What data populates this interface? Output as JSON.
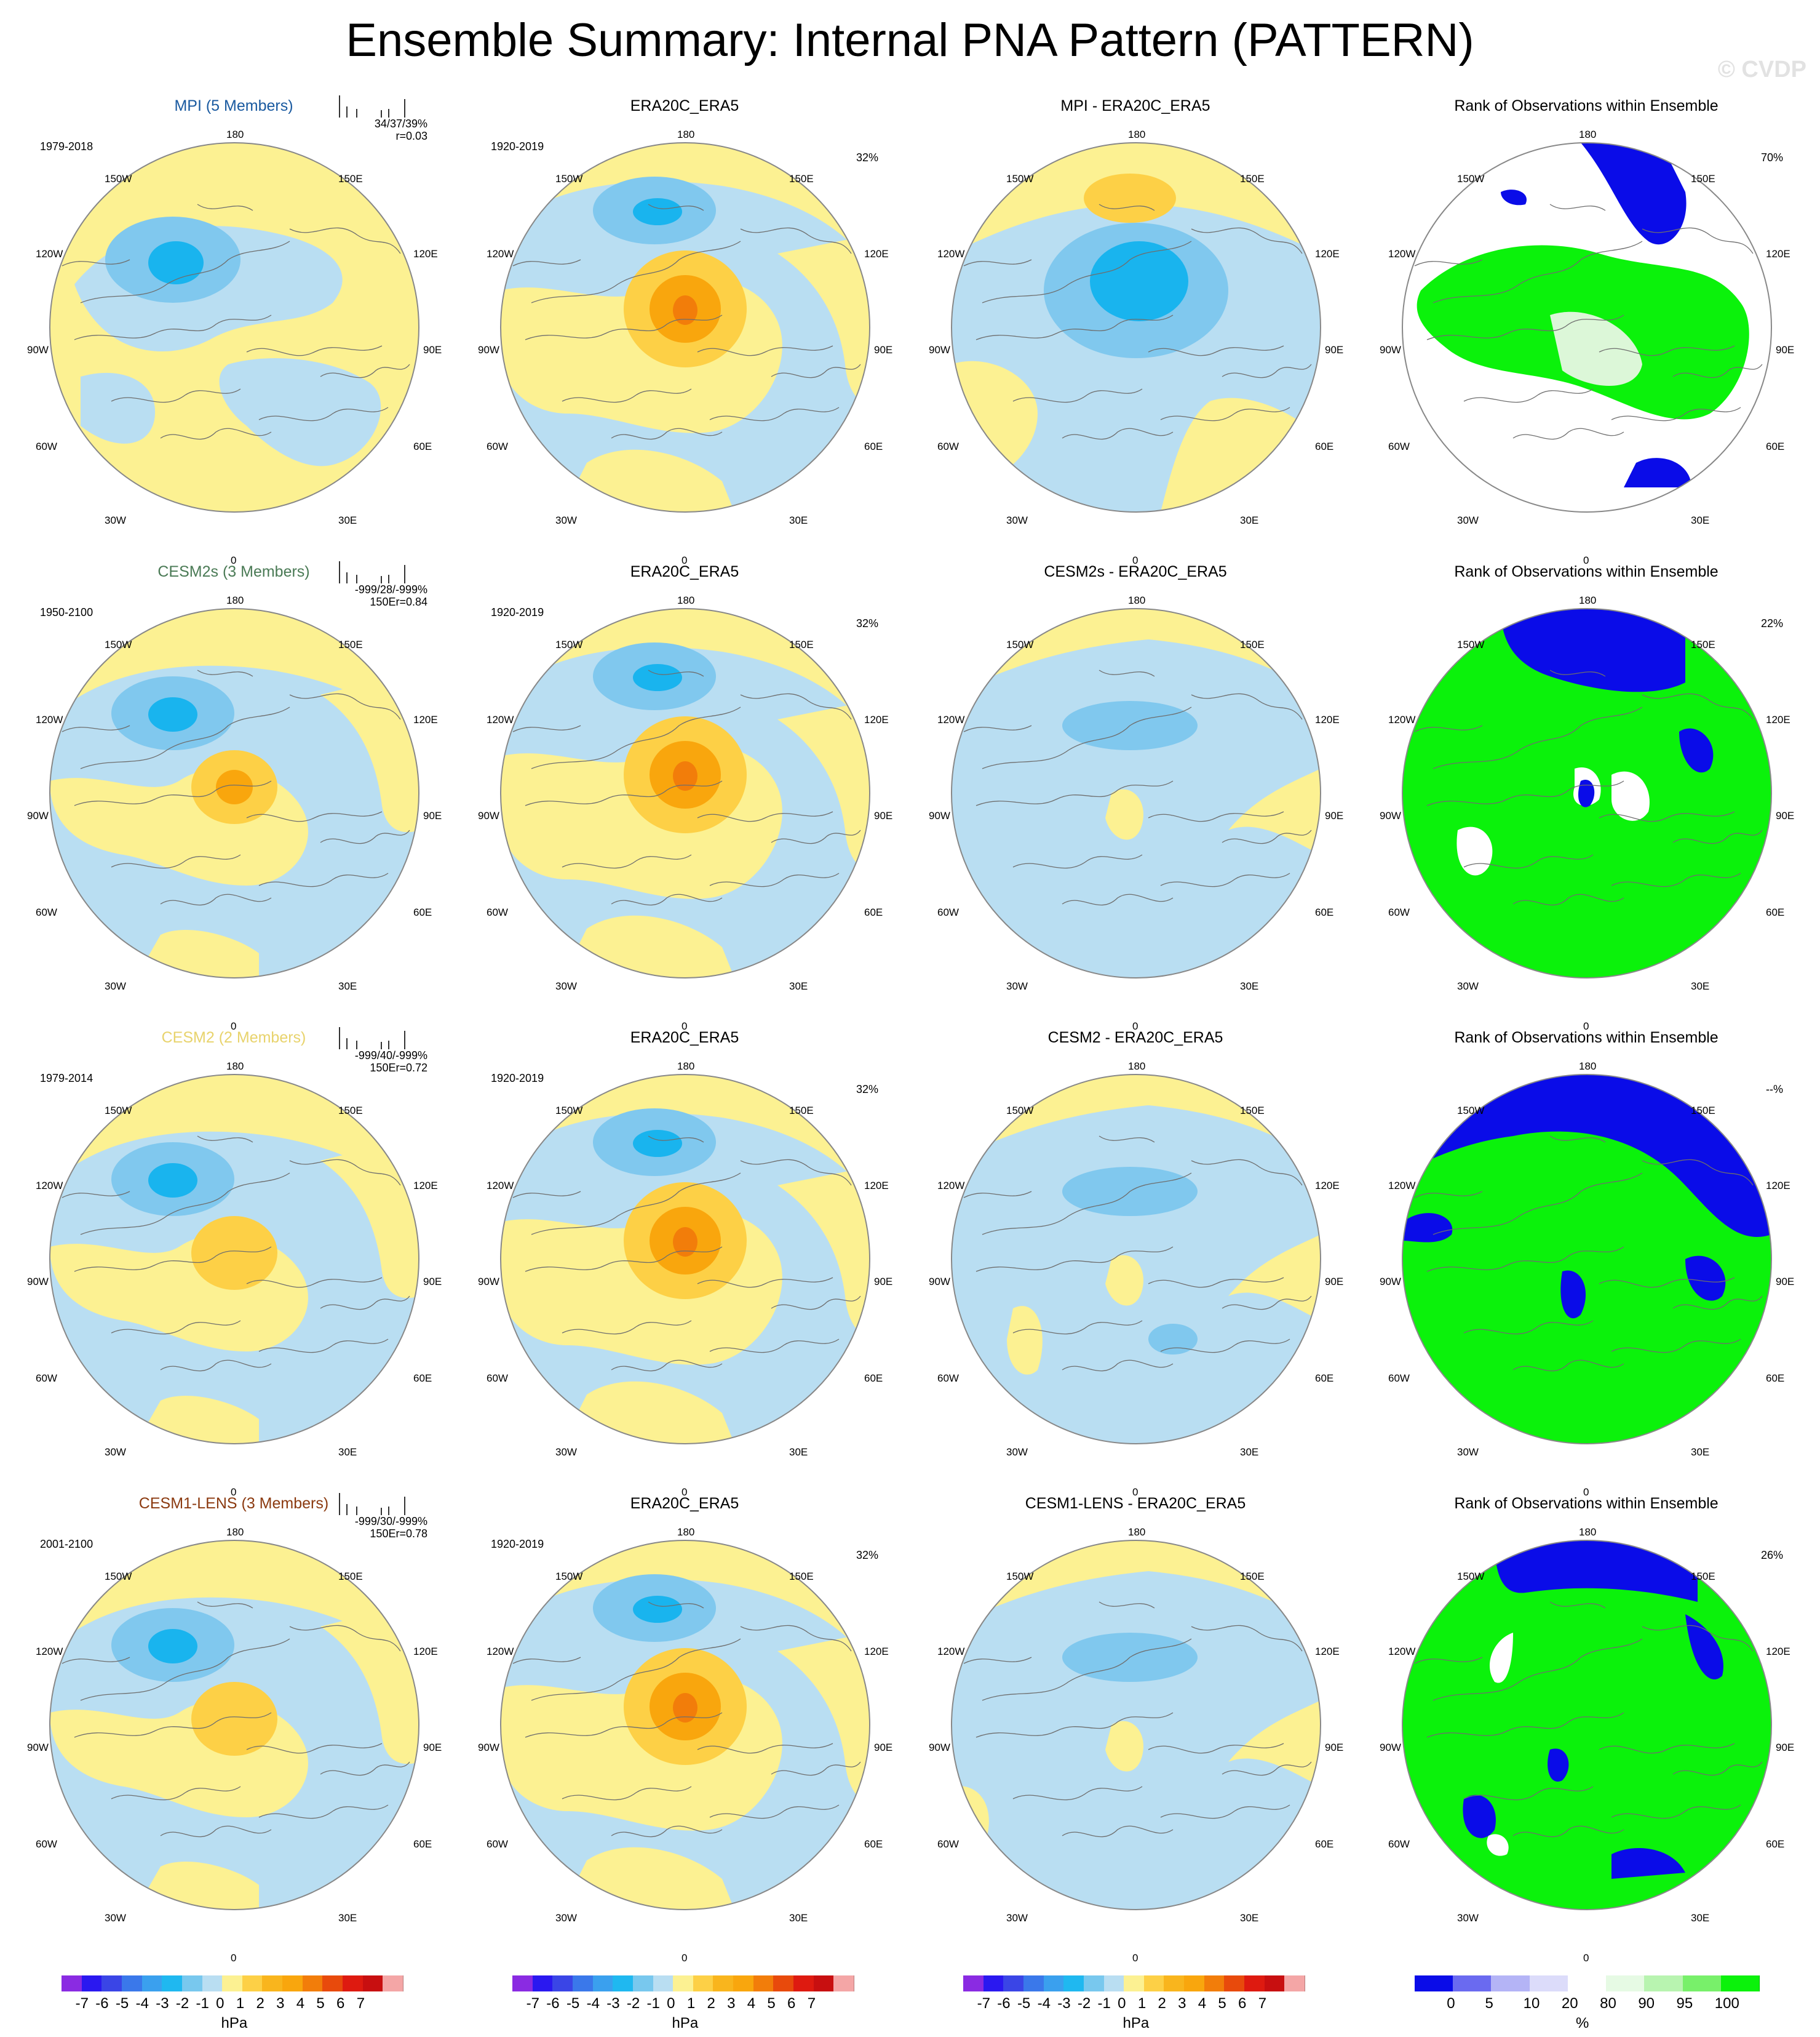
{
  "title": "Ensemble Summary: Internal PNA Pattern (PATTERN)",
  "copyright": "© CVDP",
  "colors": {
    "title_blue": "#1a5aa0",
    "title_green": "#4a7a55",
    "title_yellow": "#e8d36c",
    "title_brown": "#8b3a10",
    "neg1": "#b9def2",
    "neg2": "#80c8ee",
    "neg3": "#19b4ee",
    "pos1": "#fcf192",
    "pos2": "#fdd046",
    "pos3": "#f9a60d",
    "pos4": "#f27d0a",
    "rank_low": "#0a0ce8",
    "rank_high": "#0bf20b",
    "rank_pale": "#dcf7d8"
  },
  "lon_labels": {
    "top": "180",
    "top_left": "150W",
    "top_right": "150E",
    "upper_left": "120W",
    "upper_right": "120E",
    "left": "90W",
    "right": "90E",
    "lower_left": "60W",
    "lower_right": "60E",
    "bottom_left": "30W",
    "bottom_right": "30E",
    "bottom": "0"
  },
  "rows": [
    {
      "model": "MPI (5 Members)",
      "model_color_key": "title_blue",
      "model_years": "1979-2018",
      "stats_line1": "34/37/39%",
      "stats_line2": "r=0.03",
      "obs_title": "ERA20C_ERA5",
      "obs_years": "1920-2019",
      "obs_pct": "32%",
      "diff_title": "MPI - ERA20C_ERA5",
      "rank_title": "Rank of Observations within Ensemble",
      "rank_pct": "70%"
    },
    {
      "model": "CESM2s (3 Members)",
      "model_color_key": "title_green",
      "model_years": "1950-2100",
      "stats_line1": "-999/28/-999%",
      "stats_line2": "150Er=0.84",
      "obs_title": "ERA20C_ERA5",
      "obs_years": "1920-2019",
      "obs_pct": "32%",
      "diff_title": "CESM2s - ERA20C_ERA5",
      "rank_title": "Rank of Observations within Ensemble",
      "rank_pct": "22%"
    },
    {
      "model": "CESM2 (2 Members)",
      "model_color_key": "title_yellow",
      "model_years": "1979-2014",
      "stats_line1": "-999/40/-999%",
      "stats_line2": "150Er=0.72",
      "obs_title": "ERA20C_ERA5",
      "obs_years": "1920-2019",
      "obs_pct": "32%",
      "diff_title": "CESM2 - ERA20C_ERA5",
      "rank_title": "Rank of Observations within Ensemble",
      "rank_pct": "--%"
    },
    {
      "model": "CESM1-LENS (3 Members)",
      "model_color_key": "title_brown",
      "model_years": "2001-2100",
      "stats_line1": "-999/30/-999%",
      "stats_line2": "150Er=0.78",
      "obs_title": "ERA20C_ERA5",
      "obs_years": "1920-2019",
      "obs_pct": "32%",
      "diff_title": "CESM1-LENS - ERA20C_ERA5",
      "rank_title": "Rank of Observations within Ensemble",
      "rank_pct": "26%"
    }
  ],
  "colorbar_hpa": {
    "labels": [
      "-7",
      "-6",
      "-5",
      "-4",
      "-3",
      "-2",
      "-1",
      "0",
      "1",
      "2",
      "3",
      "4",
      "5",
      "6",
      "7"
    ],
    "unit": "hPa",
    "colors": [
      "#8a2be2",
      "#2a18f0",
      "#3a45e6",
      "#3a78ea",
      "#3aa0ee",
      "#1fb8f0",
      "#78c8ee",
      "#b9def2",
      "#fcf192",
      "#fdd046",
      "#f9b51d",
      "#f9a60d",
      "#f27d0a",
      "#e84a0c",
      "#de1a10",
      "#c80f10",
      "#f4a6a6"
    ]
  },
  "colorbar_rank": {
    "labels": [
      "0",
      "5",
      "10",
      "20",
      "80",
      "90",
      "95",
      "100"
    ],
    "unit": "%",
    "colors": [
      "#0a0ce8",
      "#6a6af0",
      "#b4b4f6",
      "#dcdcfa",
      "#ffffff",
      "#e6fae4",
      "#b8f4b0",
      "#78f06a",
      "#0bf20b"
    ]
  }
}
